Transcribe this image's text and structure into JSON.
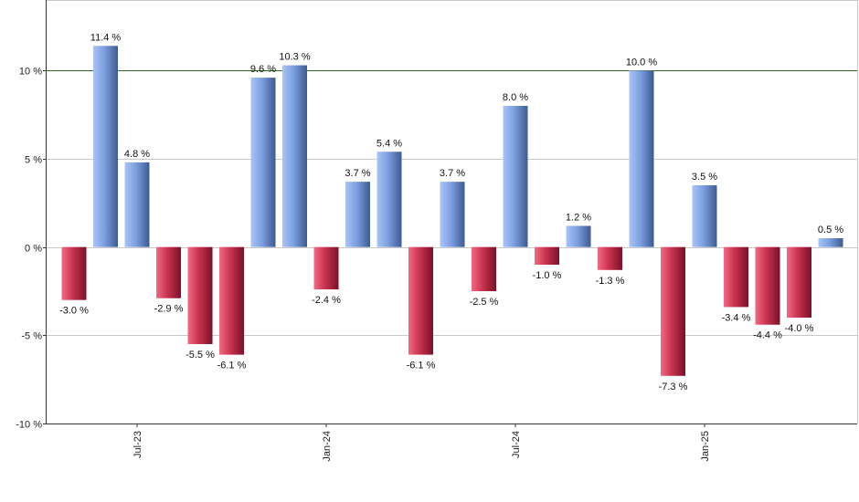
{
  "chart_data": {
    "type": "bar",
    "title": "",
    "xlabel": "",
    "ylabel": "",
    "ylim": [
      -10,
      14
    ],
    "y_ticks": [
      {
        "value": -10,
        "label": "-10 %"
      },
      {
        "value": -5,
        "label": "-5 %"
      },
      {
        "value": 0,
        "label": "0 %"
      },
      {
        "value": 5,
        "label": "5 %"
      },
      {
        "value": 10,
        "label": "10 %"
      }
    ],
    "reference_line": {
      "value": 10,
      "color": "#2e6b1f"
    },
    "x_ticks": [
      {
        "index": 2,
        "label": "Jul-23"
      },
      {
        "index": 8,
        "label": "Jan-24"
      },
      {
        "index": 14,
        "label": "Jul-24"
      },
      {
        "index": 20,
        "label": "Jan-25"
      }
    ],
    "values": [
      -3.0,
      11.4,
      4.8,
      -2.9,
      -5.5,
      -6.1,
      9.6,
      10.3,
      -2.4,
      3.7,
      5.4,
      -6.1,
      3.7,
      -2.5,
      8.0,
      -1.0,
      1.2,
      -1.3,
      10.0,
      -7.3,
      3.5,
      -3.4,
      -4.4,
      -4.0,
      0.5
    ],
    "labels": [
      "-3.0 %",
      "11.4 %",
      "4.8 %",
      "-2.9 %",
      "-5.5 %",
      "-6.1 %",
      "9.6 %",
      "10.3 %",
      "-2.4 %",
      "3.7 %",
      "5.4 %",
      "-6.1 %",
      "3.7 %",
      "-2.5 %",
      "8.0 %",
      "-1.0 %",
      "1.2 %",
      "-1.3 %",
      "10.0 %",
      "-7.3 %",
      "3.5 %",
      "-3.4 %",
      "-4.4 %",
      "-4.0 %",
      "0.5 %"
    ],
    "colors": {
      "positive_light": "#a9c4f7",
      "positive_dark": "#3d5a92",
      "negative_light": "#f26a82",
      "negative_dark": "#7a1028",
      "grid": "#c8c8c8",
      "axis": "#333333"
    },
    "grid": true
  }
}
